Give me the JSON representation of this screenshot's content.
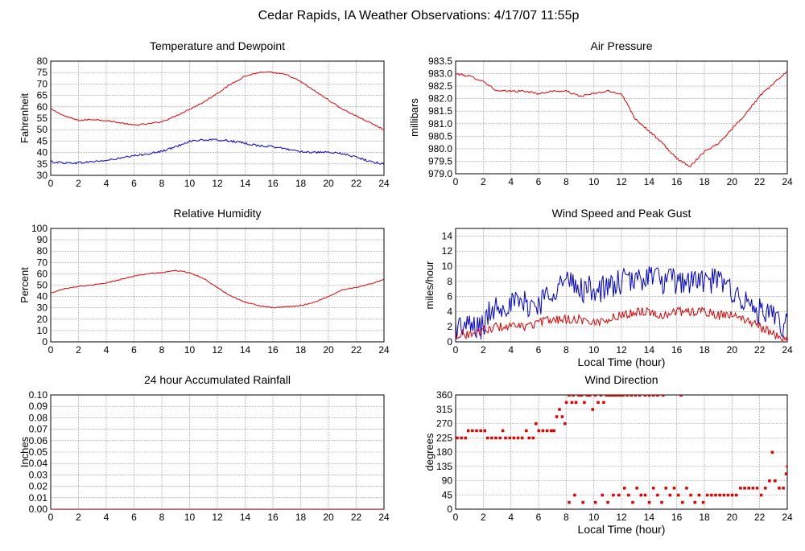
{
  "page_title": "Cedar Rapids, IA Weather Observations: 4/17/07 11:55p",
  "colors": {
    "red": "#e00000",
    "blue": "#0000d0",
    "grid": "#808080",
    "axis": "#000000"
  },
  "chart_data": [
    {
      "id": "temp",
      "type": "line",
      "title": "Temperature and Dewpoint",
      "ylabel": "Fahrenheit",
      "xlabel": "",
      "xlim": [
        0,
        24
      ],
      "ylim": [
        30,
        80
      ],
      "xticks": [
        0,
        2,
        4,
        6,
        8,
        10,
        12,
        14,
        16,
        18,
        20,
        22,
        24
      ],
      "yticks": [
        "30",
        "35",
        "40",
        "45",
        "50",
        "55",
        "60",
        "65",
        "70",
        "75",
        "80"
      ],
      "grid": true,
      "series": [
        {
          "color": "#e00000",
          "noise": 0.3,
          "x": [
            0,
            1,
            2,
            3,
            4,
            5,
            6,
            7,
            8,
            9,
            10,
            11,
            12,
            13,
            14,
            15,
            16,
            17,
            18,
            19,
            20,
            21,
            22,
            23,
            24
          ],
          "y": [
            59,
            56,
            54,
            54.5,
            54,
            53,
            52,
            52.5,
            53.5,
            56,
            59,
            62,
            66,
            70,
            73.5,
            75,
            75,
            74,
            71,
            67,
            63,
            59,
            56,
            53,
            50
          ]
        },
        {
          "color": "#0000d0",
          "noise": 0.45,
          "x": [
            0,
            1,
            2,
            3,
            4,
            5,
            6,
            7,
            8,
            9,
            10,
            11,
            12,
            13,
            14,
            15,
            16,
            17,
            18,
            19,
            20,
            21,
            22,
            23,
            24
          ],
          "y": [
            36,
            35.5,
            35.5,
            36,
            36.5,
            37.5,
            38.5,
            39.5,
            40.5,
            42.5,
            45,
            45.5,
            45.5,
            45,
            44,
            43,
            42.5,
            41.5,
            40.5,
            40,
            40,
            39.5,
            38,
            36,
            35
          ]
        }
      ]
    },
    {
      "id": "pressure",
      "type": "line",
      "title": "Air Pressure",
      "ylabel": "millibars",
      "xlabel": "",
      "xlim": [
        0,
        24
      ],
      "ylim": [
        979.0,
        983.5
      ],
      "xticks": [
        0,
        2,
        4,
        6,
        8,
        10,
        12,
        14,
        16,
        18,
        20,
        22,
        24
      ],
      "yticks": [
        "979.0",
        "979.5",
        "980.0",
        "980.5",
        "981.0",
        "981.5",
        "982.0",
        "982.5",
        "983.0",
        "983.5"
      ],
      "grid": true,
      "series": [
        {
          "color": "#e00000",
          "noise": 0.04,
          "x": [
            0,
            1,
            2,
            3,
            4,
            5,
            6,
            7,
            8,
            9,
            10,
            11,
            12,
            13,
            14,
            15,
            16,
            17,
            18,
            19,
            20,
            21,
            22,
            23,
            24
          ],
          "y": [
            983.0,
            982.9,
            982.7,
            982.3,
            982.3,
            982.3,
            982.2,
            982.3,
            982.3,
            982.1,
            982.2,
            982.3,
            982.2,
            981.2,
            980.7,
            980.2,
            979.6,
            979.3,
            979.9,
            980.2,
            980.8,
            981.4,
            982.1,
            982.6,
            983.1
          ]
        }
      ]
    },
    {
      "id": "humidity",
      "type": "line",
      "title": "Relative Humidity",
      "ylabel": "Percent",
      "xlabel": "",
      "xlim": [
        0,
        24
      ],
      "ylim": [
        0,
        100
      ],
      "xticks": [
        0,
        2,
        4,
        6,
        8,
        10,
        12,
        14,
        16,
        18,
        20,
        22,
        24
      ],
      "yticks": [
        "0",
        "10",
        "20",
        "30",
        "40",
        "50",
        "60",
        "70",
        "80",
        "90",
        "100"
      ],
      "grid": true,
      "series": [
        {
          "color": "#e00000",
          "noise": 0.4,
          "x": [
            0,
            1,
            2,
            3,
            4,
            5,
            6,
            7,
            8,
            9,
            10,
            11,
            12,
            13,
            14,
            15,
            16,
            17,
            18,
            19,
            20,
            21,
            22,
            23,
            24
          ],
          "y": [
            43,
            47,
            49,
            50,
            52,
            55,
            58,
            60,
            61,
            63,
            61,
            56,
            48,
            40,
            35,
            32,
            30,
            31,
            32,
            35,
            40,
            46,
            48,
            51,
            55
          ]
        }
      ]
    },
    {
      "id": "wind",
      "type": "line",
      "title": "Wind Speed and Peak Gust",
      "ylabel": "miles/hour",
      "xlabel": "Local Time (hour)",
      "xlim": [
        0,
        24
      ],
      "ylim": [
        0,
        15
      ],
      "xticks": [
        0,
        2,
        4,
        6,
        8,
        10,
        12,
        14,
        16,
        18,
        20,
        22,
        24
      ],
      "yticks": [
        "0",
        "2",
        "4",
        "6",
        "8",
        "10",
        "12",
        "14"
      ],
      "grid": true,
      "series": [
        {
          "color": "#0000d0",
          "noise": 1.8,
          "x": [
            0,
            1,
            2,
            2.5,
            3,
            4,
            5,
            6,
            7,
            8,
            9,
            10,
            11,
            12,
            13,
            14,
            15,
            16,
            17,
            18,
            19,
            20,
            21,
            22,
            23,
            24
          ],
          "y": [
            2,
            2,
            2,
            4,
            5,
            5,
            5,
            5,
            7,
            8,
            7,
            7,
            7,
            8,
            8,
            9,
            8,
            8,
            8,
            8,
            8,
            7,
            5,
            4,
            3,
            2
          ]
        },
        {
          "color": "#e00000",
          "noise": 0.6,
          "x": [
            0,
            1,
            2,
            3,
            4,
            5,
            6,
            7,
            8,
            9,
            10,
            11,
            12,
            13,
            14,
            15,
            16,
            17,
            18,
            19,
            20,
            21,
            22,
            23,
            24
          ],
          "y": [
            1,
            1,
            1.5,
            2,
            2,
            2,
            2.5,
            3,
            3,
            3,
            2.5,
            3,
            3.5,
            4,
            4,
            3.5,
            4,
            4,
            4,
            3.5,
            3.5,
            3,
            2,
            1,
            0.5
          ]
        }
      ]
    },
    {
      "id": "rain",
      "type": "line",
      "title": "24 hour Accumulated Rainfall",
      "ylabel": "Inches",
      "xlabel": "",
      "xlim": [
        0,
        24
      ],
      "ylim": [
        0,
        0.1
      ],
      "xticks": [
        0,
        2,
        4,
        6,
        8,
        10,
        12,
        14,
        16,
        18,
        20,
        22,
        24
      ],
      "yticks": [
        "0.00",
        "0.01",
        "0.02",
        "0.03",
        "0.04",
        "0.05",
        "0.06",
        "0.07",
        "0.08",
        "0.09",
        "0.10"
      ],
      "grid": true,
      "series": [
        {
          "color": "#e00000",
          "noise": 0,
          "x": [
            0,
            24
          ],
          "y": [
            0,
            0
          ]
        }
      ]
    },
    {
      "id": "direction",
      "type": "scatter",
      "title": "Wind Direction",
      "ylabel": "degrees",
      "xlabel": "Local Time (hour)",
      "xlim": [
        0,
        24
      ],
      "ylim": [
        0,
        360
      ],
      "xticks": [
        0,
        2,
        4,
        6,
        8,
        10,
        12,
        14,
        16,
        18,
        20,
        22,
        24
      ],
      "yticks": [
        "0",
        "45",
        "90",
        "135",
        "180",
        "225",
        "270",
        "315",
        "360"
      ],
      "grid": true,
      "points": {
        "color": "#e00000",
        "data": [
          [
            0.1,
            225
          ],
          [
            0.4,
            225
          ],
          [
            0.7,
            225
          ],
          [
            0.9,
            248
          ],
          [
            1.2,
            248
          ],
          [
            1.5,
            248
          ],
          [
            1.8,
            248
          ],
          [
            2.1,
            248
          ],
          [
            2.3,
            225
          ],
          [
            2.6,
            225
          ],
          [
            2.9,
            225
          ],
          [
            3.2,
            225
          ],
          [
            3.4,
            248
          ],
          [
            3.6,
            225
          ],
          [
            3.9,
            225
          ],
          [
            4.2,
            225
          ],
          [
            4.5,
            225
          ],
          [
            4.8,
            225
          ],
          [
            5.1,
            248
          ],
          [
            5.3,
            225
          ],
          [
            5.6,
            225
          ],
          [
            5.8,
            270
          ],
          [
            6.0,
            248
          ],
          [
            6.3,
            248
          ],
          [
            6.6,
            248
          ],
          [
            6.9,
            248
          ],
          [
            7.1,
            248
          ],
          [
            7.3,
            292
          ],
          [
            7.5,
            315
          ],
          [
            7.7,
            292
          ],
          [
            7.9,
            270
          ],
          [
            8.0,
            337
          ],
          [
            8.2,
            360
          ],
          [
            8.4,
            337
          ],
          [
            8.5,
            360
          ],
          [
            8.7,
            337
          ],
          [
            8.9,
            360
          ],
          [
            9.1,
            360
          ],
          [
            9.3,
            337
          ],
          [
            9.5,
            360
          ],
          [
            9.7,
            360
          ],
          [
            9.9,
            315
          ],
          [
            10.1,
            360
          ],
          [
            10.3,
            337
          ],
          [
            10.5,
            360
          ],
          [
            10.7,
            337
          ],
          [
            10.9,
            360
          ],
          [
            11.1,
            360
          ],
          [
            11.3,
            360
          ],
          [
            11.5,
            360
          ],
          [
            11.7,
            360
          ],
          [
            11.9,
            360
          ],
          [
            12.1,
            360
          ],
          [
            12.4,
            360
          ],
          [
            12.7,
            360
          ],
          [
            13.0,
            360
          ],
          [
            13.3,
            360
          ],
          [
            13.7,
            360
          ],
          [
            14.0,
            360
          ],
          [
            14.3,
            360
          ],
          [
            14.6,
            360
          ],
          [
            15.0,
            360
          ],
          [
            16.3,
            360
          ],
          [
            8.2,
            22
          ],
          [
            8.6,
            45
          ],
          [
            9.2,
            22
          ],
          [
            10.1,
            22
          ],
          [
            10.6,
            45
          ],
          [
            11.0,
            22
          ],
          [
            11.4,
            45
          ],
          [
            11.8,
            45
          ],
          [
            12.2,
            67
          ],
          [
            12.5,
            45
          ],
          [
            12.8,
            22
          ],
          [
            13.1,
            67
          ],
          [
            13.4,
            45
          ],
          [
            13.7,
            45
          ],
          [
            14.0,
            22
          ],
          [
            14.3,
            67
          ],
          [
            14.6,
            45
          ],
          [
            14.9,
            22
          ],
          [
            15.2,
            67
          ],
          [
            15.5,
            45
          ],
          [
            15.8,
            67
          ],
          [
            16.1,
            45
          ],
          [
            16.4,
            22
          ],
          [
            16.7,
            67
          ],
          [
            17.0,
            45
          ],
          [
            17.3,
            22
          ],
          [
            17.6,
            45
          ],
          [
            17.9,
            22
          ],
          [
            18.2,
            45
          ],
          [
            18.5,
            45
          ],
          [
            18.8,
            45
          ],
          [
            19.1,
            45
          ],
          [
            19.4,
            45
          ],
          [
            19.7,
            45
          ],
          [
            20.0,
            45
          ],
          [
            20.3,
            45
          ],
          [
            20.6,
            67
          ],
          [
            20.9,
            67
          ],
          [
            21.2,
            67
          ],
          [
            21.5,
            67
          ],
          [
            21.8,
            67
          ],
          [
            22.1,
            45
          ],
          [
            22.4,
            67
          ],
          [
            22.7,
            90
          ],
          [
            22.9,
            180
          ],
          [
            23.1,
            90
          ],
          [
            23.4,
            67
          ],
          [
            23.7,
            67
          ],
          [
            23.9,
            112
          ],
          [
            24.0,
            135
          ]
        ]
      }
    }
  ]
}
